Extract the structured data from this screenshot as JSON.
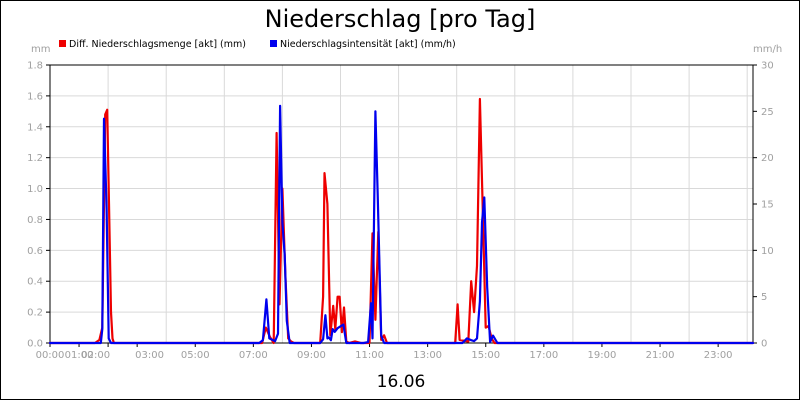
{
  "chart_data": {
    "type": "line",
    "title": "Niederschlag [pro Tag]",
    "date_label": "16.06",
    "y_left_unit": "mm",
    "y_right_unit": "mm/h",
    "ylim_left": [
      0,
      1.8
    ],
    "ylim_right": [
      0,
      30
    ],
    "y_left_ticks": [
      "0.0",
      "0.2",
      "0.4",
      "0.6",
      "0.8",
      "1.0",
      "1.2",
      "1.4",
      "1.6",
      "1.8"
    ],
    "y_right_ticks": [
      "0",
      "5",
      "10",
      "15",
      "20",
      "25",
      "30"
    ],
    "x_range_hours": [
      0,
      24.2
    ],
    "x_ticks": [
      "00:00",
      "01:00",
      "02:00",
      "03:00",
      "05:00",
      "07:00",
      "09:00",
      "11:00",
      "13:00",
      "15:00",
      "17:00",
      "19:00",
      "21:00",
      "23:00"
    ],
    "x_tick_hours": [
      0,
      1,
      2,
      3,
      5,
      7,
      9,
      11,
      13,
      15,
      17,
      19,
      21,
      23
    ],
    "grid": true,
    "legend_position": "top-left",
    "colors": {
      "menge": "#ee0000",
      "intensitaet": "#0000ee",
      "grid": "#d9d9d9"
    },
    "series": [
      {
        "name": "Diff. Niederschlagsmenge [akt] (mm)",
        "axis": "left",
        "color": "#ee0000",
        "x": [
          0,
          1.55,
          1.7,
          1.8,
          1.9,
          1.97,
          2.03,
          2.1,
          2.15,
          2.2,
          2.3,
          7.3,
          7.43,
          7.57,
          7.7,
          7.8,
          7.9,
          8.0,
          8.1,
          8.2,
          8.3,
          8.4,
          9.3,
          9.4,
          9.45,
          9.55,
          9.65,
          9.75,
          9.82,
          9.9,
          9.97,
          10.05,
          10.12,
          10.2,
          10.3,
          10.5,
          10.7,
          10.8,
          11.0,
          11.1,
          11.2,
          11.3,
          11.4,
          11.5,
          11.6,
          13.95,
          14.03,
          14.1,
          14.4,
          14.5,
          14.6,
          14.7,
          14.8,
          14.9,
          15.0,
          15.1,
          15.2,
          15.3,
          15.4,
          24.2
        ],
        "y": [
          0,
          0,
          0.02,
          0.1,
          1.48,
          1.51,
          0.9,
          0.2,
          0.03,
          0,
          0,
          0,
          0.1,
          0.04,
          0,
          1.36,
          0.25,
          1.0,
          0.45,
          0.03,
          0.01,
          0,
          0,
          0.3,
          1.1,
          0.9,
          0.05,
          0.24,
          0.09,
          0.3,
          0.3,
          0.07,
          0.23,
          0.01,
          0,
          0.01,
          0,
          0,
          0,
          0.71,
          0.15,
          0.72,
          0.02,
          0.05,
          0,
          0,
          0.25,
          0.02,
          0.01,
          0.4,
          0.2,
          0.5,
          1.58,
          0.85,
          0.1,
          0.11,
          0.03,
          0,
          0,
          0
        ]
      },
      {
        "name": "Niederschlagsintensität [akt] (mm/h)",
        "axis": "right",
        "color": "#0000ee",
        "x": [
          0,
          1.75,
          1.8,
          1.86,
          1.95,
          2.02,
          2.1,
          7.2,
          7.33,
          7.45,
          7.55,
          7.75,
          7.85,
          7.92,
          8.0,
          8.08,
          8.15,
          8.25,
          8.4,
          9.3,
          9.4,
          9.48,
          9.55,
          9.6,
          9.67,
          9.73,
          9.8,
          9.9,
          10.0,
          10.1,
          10.2,
          10.8,
          10.95,
          11.05,
          11.1,
          11.2,
          11.28,
          11.4,
          11.5,
          14.2,
          14.35,
          14.5,
          14.6,
          14.7,
          14.8,
          14.87,
          14.95,
          15.05,
          15.15,
          15.25,
          15.4,
          24.2
        ],
        "y": [
          0,
          0,
          1.5,
          24.2,
          14.5,
          0.5,
          0,
          0,
          0.3,
          4.7,
          0.5,
          0.2,
          1.0,
          25.6,
          13.0,
          9.5,
          2.4,
          0,
          0,
          0,
          0.4,
          3.0,
          0.5,
          0.6,
          0.3,
          1.5,
          1.2,
          1.6,
          1.8,
          2.0,
          0,
          0,
          0.1,
          4.3,
          0.5,
          25.0,
          16.0,
          0.8,
          0,
          0,
          0.5,
          0.3,
          0.2,
          0.5,
          4.5,
          13.0,
          15.7,
          6.0,
          0.1,
          0.8,
          0,
          0
        ]
      }
    ]
  }
}
